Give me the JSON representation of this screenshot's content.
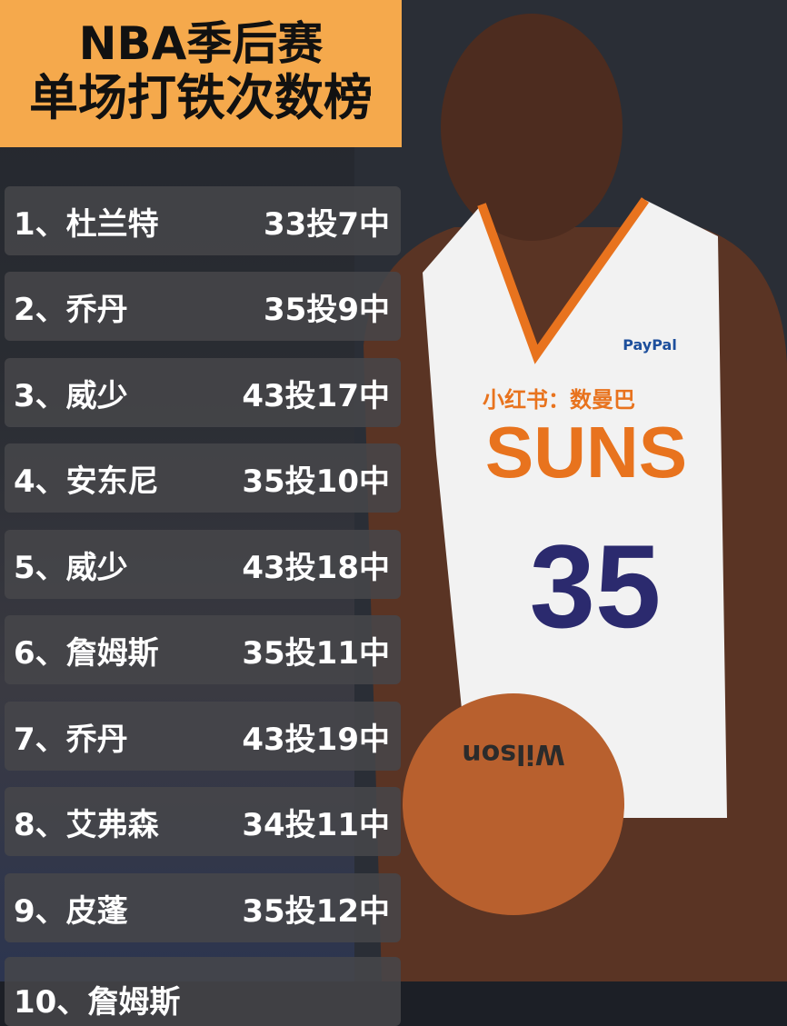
{
  "title": {
    "line1": "NBA季后赛",
    "line2": "单场打铁次数榜"
  },
  "rows": [
    {
      "rank_name": "1、杜兰特",
      "stat": "33投7中"
    },
    {
      "rank_name": "2、乔丹",
      "stat": "35投9中"
    },
    {
      "rank_name": "3、威少",
      "stat": "43投17中"
    },
    {
      "rank_name": "4、安东尼",
      "stat": "35投10中"
    },
    {
      "rank_name": "5、威少",
      "stat": "43投18中"
    },
    {
      "rank_name": "6、詹姆斯",
      "stat": "35投11中"
    },
    {
      "rank_name": "7、乔丹",
      "stat": "43投19中"
    },
    {
      "rank_name": "8、艾弗森",
      "stat": "34投11中"
    },
    {
      "rank_name": "9、皮蓬",
      "stat": "35投12中"
    },
    {
      "rank_name": "10、詹姆斯",
      "stat": ""
    }
  ],
  "photo": {
    "jersey_team": "SUNS",
    "jersey_number": "35",
    "watermark": "小红书：数曼巴",
    "sponsor": "PayPal",
    "ball_brand": "Wilson"
  },
  "colors": {
    "title_bg": "#f5a94c",
    "row_bg": "#46464a",
    "jersey_orange": "#e8731e",
    "jersey_purple": "#2b2a6e"
  }
}
